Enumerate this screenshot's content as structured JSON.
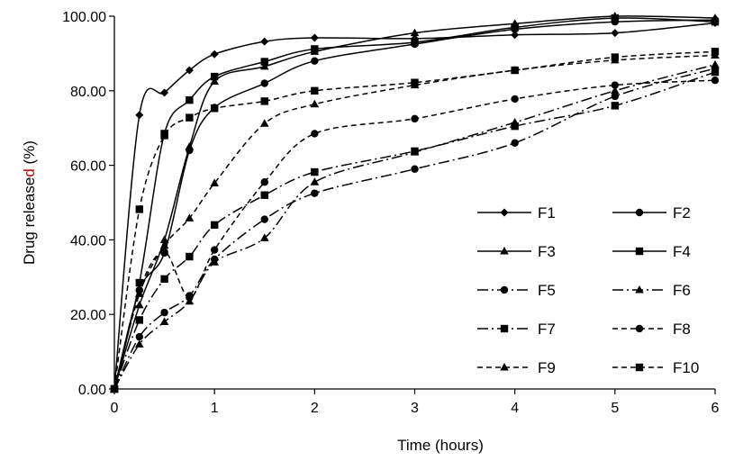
{
  "chart_data": {
    "type": "line",
    "title": "",
    "xlabel": "Time (hours)",
    "ylabel_parts": [
      "Drug relea",
      "se",
      "d",
      " (%)"
    ],
    "ylabel_colors": [
      "#000000",
      "#000000",
      "#c00000",
      "#000000"
    ],
    "xlim": [
      0,
      6
    ],
    "ylim": [
      0,
      100
    ],
    "xticks": [
      "0",
      "1",
      "2",
      "3",
      "4",
      "5",
      "6"
    ],
    "yticks": [
      "0.00",
      "20.00",
      "40.00",
      "60.00",
      "80.00",
      "100.00"
    ],
    "grid": false,
    "legend_position": "bottom-right",
    "x": [
      0,
      0.25,
      0.5,
      0.75,
      1,
      1.5,
      2,
      3,
      4,
      5,
      6
    ],
    "series": [
      {
        "name": "F1",
        "marker": "diamond",
        "dash": "solid",
        "values": [
          0,
          73.5,
          79.5,
          85.5,
          89.8,
          93.2,
          94.2,
          94.0,
          95.0,
          95.5,
          98.2
        ]
      },
      {
        "name": "F2",
        "marker": "circle",
        "dash": "solid",
        "values": [
          0,
          26.5,
          36.5,
          64.0,
          75.5,
          82.0,
          88.0,
          92.5,
          96.5,
          98.5,
          99.0
        ]
      },
      {
        "name": "F3",
        "marker": "triangle",
        "dash": "solid",
        "values": [
          0,
          22.5,
          40.0,
          65.0,
          82.5,
          86.5,
          90.5,
          95.5,
          98.0,
          100.0,
          99.5
        ]
      },
      {
        "name": "F4",
        "marker": "square",
        "dash": "solid",
        "values": [
          0,
          28.5,
          68.5,
          77.5,
          83.8,
          87.8,
          91.2,
          93.0,
          97.0,
          99.5,
          98.5
        ]
      },
      {
        "name": "F5",
        "marker": "circle",
        "dash": "dashdot",
        "values": [
          0,
          14.0,
          20.5,
          25.0,
          34.8,
          45.5,
          52.5,
          59.0,
          66.0,
          78.5,
          86.0
        ]
      },
      {
        "name": "F6",
        "marker": "triangle",
        "dash": "dashdot",
        "values": [
          0,
          12.0,
          18.0,
          23.5,
          34.0,
          40.5,
          55.5,
          63.5,
          71.5,
          80.0,
          87.0
        ]
      },
      {
        "name": "F7",
        "marker": "square",
        "dash": "dashdot",
        "values": [
          0,
          18.5,
          29.5,
          35.5,
          44.0,
          52.0,
          58.2,
          63.8,
          70.5,
          76.0,
          85.0
        ]
      },
      {
        "name": "F8",
        "marker": "circle",
        "dash": "dashed",
        "values": [
          0,
          26.5,
          36.8,
          24.5,
          37.3,
          55.5,
          68.5,
          72.5,
          77.8,
          81.5,
          82.8
        ]
      },
      {
        "name": "F9",
        "marker": "triangle",
        "dash": "dashed",
        "values": [
          0,
          25.5,
          38.5,
          45.8,
          55.2,
          71.2,
          76.4,
          81.5,
          85.5,
          88.2,
          89.5
        ]
      },
      {
        "name": "F10",
        "marker": "square",
        "dash": "dashed",
        "values": [
          0,
          48.2,
          68.0,
          72.8,
          75.3,
          77.2,
          80.0,
          82.2,
          85.5,
          89.0,
          90.5
        ]
      }
    ]
  }
}
